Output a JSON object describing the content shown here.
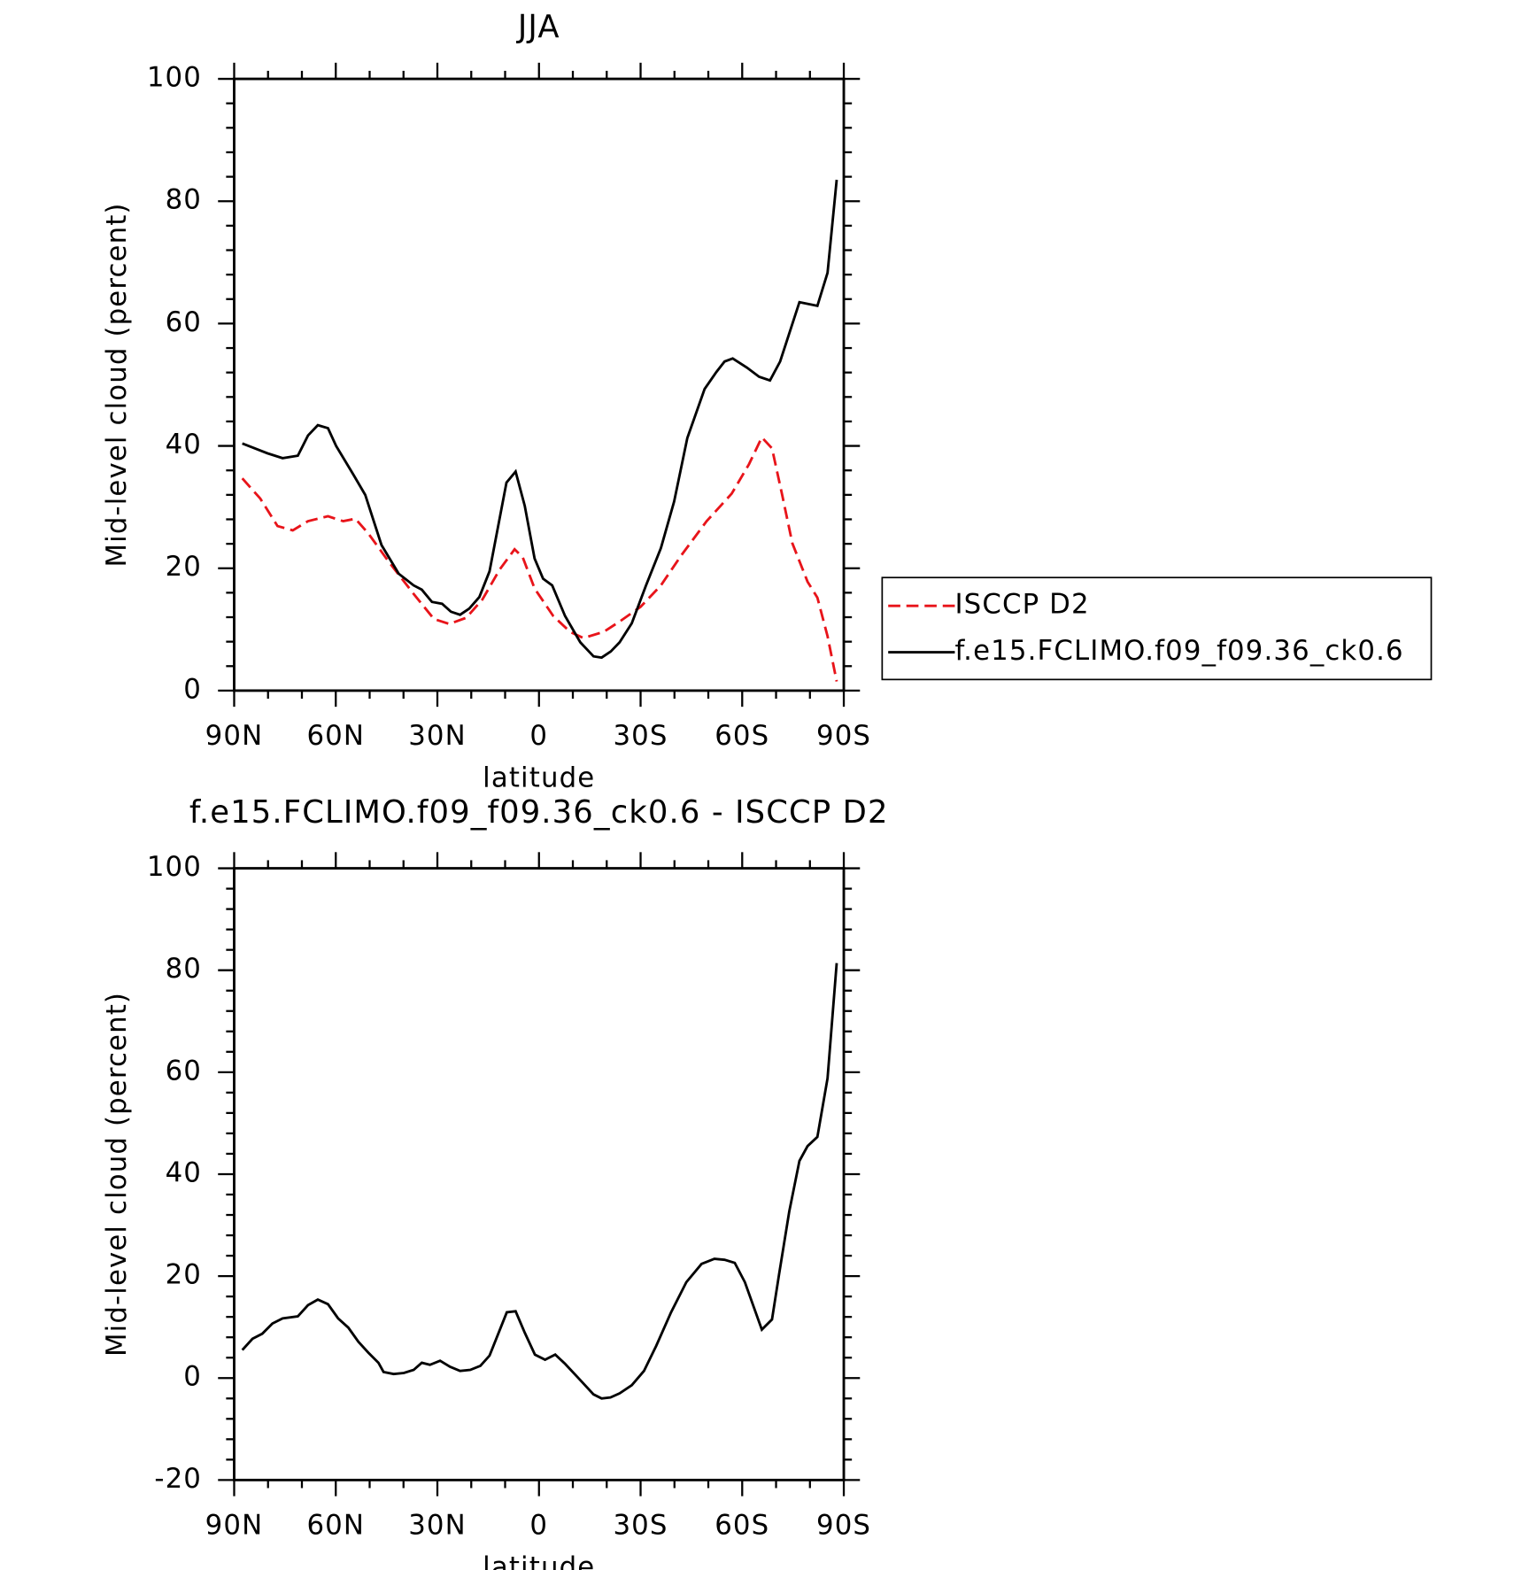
{
  "chart_data": [
    {
      "type": "line",
      "title": "JJA",
      "xlabel": "latitude",
      "ylabel": "Mid-level cloud (percent)",
      "xlim": [
        90,
        -90
      ],
      "xticks": [
        {
          "value": 90,
          "label": "90N"
        },
        {
          "value": 60,
          "label": "60N"
        },
        {
          "value": 30,
          "label": "30N"
        },
        0,
        {
          "value": -30,
          "label": "30S"
        },
        {
          "value": -60,
          "label": "60S"
        },
        {
          "value": -90,
          "label": "90S"
        }
      ],
      "xminorticks": [
        80,
        70,
        50,
        40,
        20,
        10,
        -10,
        -20,
        -40,
        -50,
        -70,
        -80
      ],
      "ylim": [
        0,
        100
      ],
      "yticks": [
        0,
        20,
        40,
        60,
        80,
        100
      ],
      "yminorticks": [
        4,
        8,
        12,
        16,
        24,
        28,
        32,
        36,
        44,
        48,
        52,
        56,
        64,
        68,
        72,
        76,
        84,
        88,
        92,
        96
      ],
      "legend": "right",
      "series": [
        {
          "name": "ISCCP D2",
          "color": "#e8141a",
          "dashed": true,
          "x": [
            87.6,
            82.3,
            77.2,
            72.7,
            68.2,
            62.3,
            57.8,
            54.2,
            50.4,
            44.4,
            37.0,
            31.0,
            26.5,
            21.5,
            16.7,
            11.6,
            7.2,
            4.8,
            1.3,
            -4.2,
            -9.2,
            -13.1,
            -19.1,
            -24.1,
            -30.0,
            -36.0,
            -42.0,
            -49.5,
            -56.9,
            -62.0,
            -65.8,
            -68.8,
            -71.8,
            -74.8,
            -79.3,
            -82.2,
            -85.2,
            -87.9
          ],
          "values": [
            34.7,
            31.4,
            26.9,
            26.2,
            27.7,
            28.5,
            27.7,
            28.1,
            25.7,
            21.1,
            15.8,
            11.7,
            10.9,
            11.9,
            14.9,
            19.8,
            23.1,
            21.8,
            16.7,
            12.2,
            9.6,
            8.6,
            9.6,
            11.4,
            13.7,
            17.2,
            22.1,
            27.7,
            32.2,
            37.0,
            41.4,
            39.6,
            32.0,
            24.1,
            17.8,
            15.2,
            8.9,
            1.5
          ]
        },
        {
          "name": "f.e15.FCLIMO.f09_f09.36_ck0.6",
          "color": "#000000",
          "dashed": false,
          "x": [
            87.6,
            80.2,
            75.7,
            71.2,
            68.2,
            65.3,
            62.3,
            59.9,
            54.8,
            51.3,
            46.5,
            41.4,
            37.0,
            34.6,
            31.6,
            28.6,
            26.0,
            23.3,
            20.6,
            17.6,
            14.6,
            9.6,
            6.9,
            4.2,
            1.3,
            -1.2,
            -3.9,
            -7.7,
            -12.2,
            -16.1,
            -18.5,
            -21.2,
            -23.8,
            -27.4,
            -31.6,
            -36.0,
            -39.9,
            -43.8,
            -48.9,
            -52.4,
            -54.8,
            -57.2,
            -61.4,
            -65.0,
            -68.2,
            -71.2,
            -76.9,
            -82.2,
            -85.2,
            -87.9
          ],
          "values": [
            40.4,
            38.8,
            38.0,
            38.4,
            41.7,
            43.4,
            42.9,
            40.0,
            35.3,
            32.0,
            23.8,
            19.1,
            17.2,
            16.5,
            14.5,
            14.2,
            12.9,
            12.4,
            13.4,
            15.3,
            19.5,
            34.0,
            35.8,
            30.2,
            21.6,
            18.3,
            17.2,
            12.2,
            7.9,
            5.6,
            5.4,
            6.4,
            7.9,
            11.0,
            17.2,
            23.3,
            30.9,
            41.3,
            49.3,
            52.1,
            53.8,
            54.3,
            52.8,
            51.3,
            50.7,
            53.8,
            63.5,
            62.9,
            68.3,
            83.5
          ]
        }
      ]
    },
    {
      "type": "line",
      "title": "f.e15.FCLIMO.f09_f09.36_ck0.6 - ISCCP D2",
      "xlabel": "latitude",
      "ylabel": "Mid-level cloud (percent)",
      "xlim": [
        90,
        -90
      ],
      "xticks": [
        {
          "value": 90,
          "label": "90N"
        },
        {
          "value": 60,
          "label": "60N"
        },
        {
          "value": 30,
          "label": "30N"
        },
        0,
        {
          "value": -30,
          "label": "30S"
        },
        {
          "value": -60,
          "label": "60S"
        },
        {
          "value": -90,
          "label": "90S"
        }
      ],
      "xminorticks": [
        80,
        70,
        50,
        40,
        20,
        10,
        -10,
        -20,
        -40,
        -50,
        -70,
        -80
      ],
      "ylim": [
        -20,
        100
      ],
      "yticks": [
        -20,
        0,
        20,
        40,
        60,
        80,
        100
      ],
      "yminorticks": [
        -16,
        -12,
        -8,
        -4,
        4,
        8,
        12,
        16,
        24,
        28,
        32,
        36,
        44,
        48,
        52,
        56,
        64,
        68,
        72,
        76,
        84,
        88,
        92,
        96
      ],
      "series": [
        {
          "color": "#000000",
          "dashed": false,
          "x": [
            87.6,
            84.6,
            81.7,
            78.7,
            75.7,
            71.2,
            68.2,
            65.3,
            62.3,
            59.3,
            56.3,
            53.3,
            50.4,
            47.4,
            45.9,
            42.9,
            39.9,
            37.0,
            34.6,
            32.2,
            29.2,
            26.2,
            23.3,
            20.3,
            17.3,
            14.6,
            9.5,
            6.9,
            4.2,
            1.2,
            -1.8,
            -4.8,
            -7.7,
            -12.2,
            -16.1,
            -18.5,
            -21.1,
            -23.8,
            -27.4,
            -31.0,
            -34.6,
            -39.0,
            -43.5,
            -48.0,
            -51.8,
            -54.8,
            -57.8,
            -60.8,
            -65.8,
            -68.8,
            -70.9,
            -73.9,
            -76.9,
            -79.3,
            -82.2,
            -85.2,
            -87.9
          ],
          "values": [
            5.5,
            7.7,
            8.7,
            10.7,
            11.7,
            12.1,
            14.3,
            15.4,
            14.5,
            11.7,
            9.9,
            7.1,
            5.0,
            3.0,
            1.2,
            0.8,
            1.0,
            1.6,
            3.0,
            2.6,
            3.4,
            2.2,
            1.4,
            1.6,
            2.4,
            4.4,
            12.9,
            13.1,
            8.9,
            4.6,
            3.6,
            4.6,
            2.8,
            -0.4,
            -3.2,
            -4.0,
            -3.8,
            -3.0,
            -1.4,
            1.4,
            6.3,
            12.9,
            18.8,
            22.4,
            23.4,
            23.2,
            22.6,
            18.8,
            9.5,
            11.5,
            20.4,
            32.7,
            42.6,
            45.5,
            47.3,
            58.8,
            81.4
          ]
        }
      ]
    }
  ]
}
